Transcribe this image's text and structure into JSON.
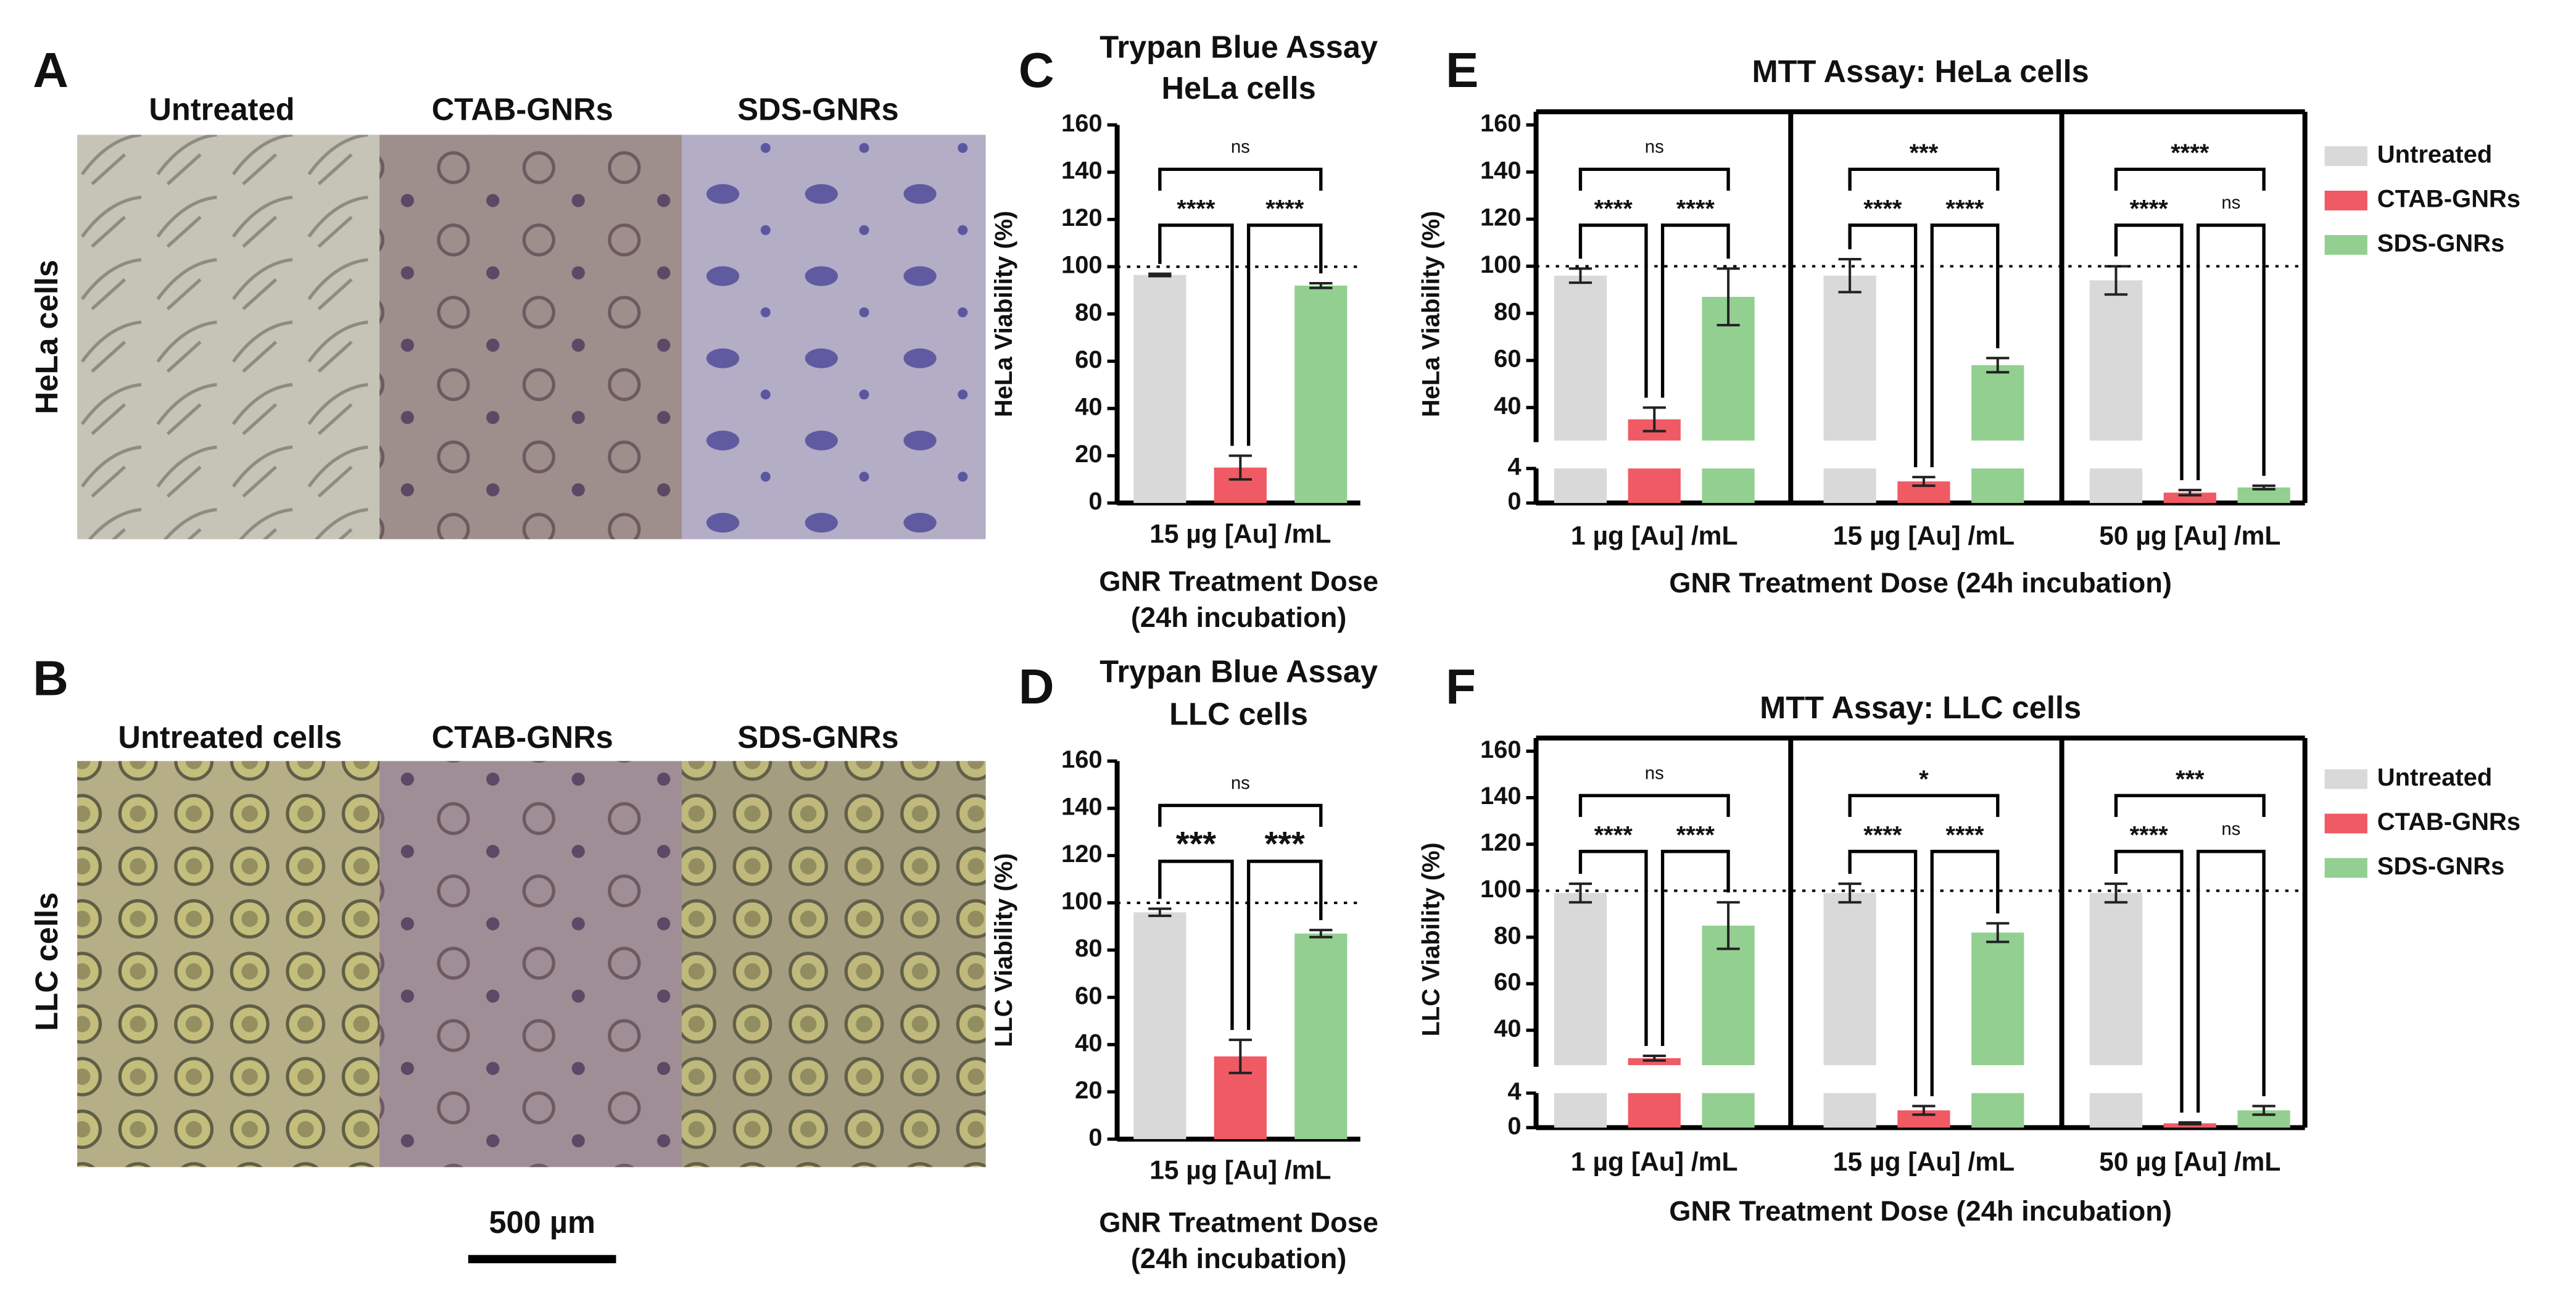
{
  "panels": {
    "a": {
      "letter": "A",
      "row_label": "HeLa cells",
      "columns": [
        "Untreated",
        "CTAB-GNRs",
        "SDS-GNRs"
      ]
    },
    "b": {
      "letter": "B",
      "row_label": "LLC cells",
      "columns": [
        "Untreated cells",
        "CTAB-GNRs",
        "SDS-GNRs"
      ]
    },
    "scale_bar": "500 µm"
  },
  "chart_data": [
    {
      "type": "bar",
      "letter": "C",
      "title": "Trypan Blue Assay",
      "subtitle": "HeLa cells",
      "ylabel": "HeLa Viability (%)",
      "xlabel": [
        "GNR Treatment Dose",
        "(24h incubation)"
      ],
      "categories": [
        "15 µg [Au] /mL"
      ],
      "series": [
        {
          "color": "#d9d9d9",
          "values": [
            96.5
          ],
          "errors": [
            0.5
          ]
        },
        {
          "color": "#ef5a64",
          "values": [
            15
          ],
          "errors": [
            5
          ]
        },
        {
          "color": "#93cf91",
          "values": [
            92
          ],
          "errors": [
            1
          ]
        }
      ],
      "ylim": [
        0,
        160
      ],
      "yticks": [
        0,
        20,
        40,
        60,
        80,
        100,
        120,
        140,
        160
      ],
      "reference_line": 100,
      "brackets": [
        [
          {
            "between": [
              0,
              2
            ],
            "label": "ns"
          },
          {
            "between": [
              0,
              1
            ],
            "label": "****"
          },
          {
            "between": [
              1,
              2
            ],
            "label": "****"
          }
        ]
      ]
    },
    {
      "type": "bar",
      "letter": "D",
      "title": "Trypan Blue Assay",
      "subtitle": "LLC cells",
      "ylabel": "LLC Viability (%)",
      "xlabel": [
        "GNR Treatment Dose",
        "(24h incubation)"
      ],
      "categories": [
        "15 µg [Au] /mL"
      ],
      "series": [
        {
          "color": "#d9d9d9",
          "values": [
            96
          ],
          "errors": [
            1.5
          ]
        },
        {
          "color": "#ef5a64",
          "values": [
            35
          ],
          "errors": [
            7
          ]
        },
        {
          "color": "#93cf91",
          "values": [
            87
          ],
          "errors": [
            1.5
          ]
        }
      ],
      "ylim": [
        0,
        160
      ],
      "yticks": [
        0,
        20,
        40,
        60,
        80,
        100,
        120,
        140,
        160
      ],
      "reference_line": 100,
      "brackets": [
        [
          {
            "between": [
              0,
              2
            ],
            "label": "ns"
          },
          {
            "between": [
              0,
              1
            ],
            "label": "***"
          },
          {
            "between": [
              1,
              2
            ],
            "label": "***"
          }
        ]
      ]
    },
    {
      "type": "bar",
      "letter": "E",
      "title": "MTT Assay: HeLa cells",
      "ylabel": "HeLa Viability (%)",
      "xlabel": [
        "GNR Treatment Dose (24h incubation)"
      ],
      "categories": [
        "1 µg [Au] /mL",
        "15 µg [Au] /mL",
        "50 µg [Au] /mL"
      ],
      "series": [
        {
          "name": "Untreated",
          "color": "#d9d9d9",
          "values": [
            96,
            96,
            94
          ],
          "errors": [
            3,
            7,
            6
          ]
        },
        {
          "name": "CTAB-GNRs",
          "color": "#ef5a64",
          "values": [
            35,
            2.5,
            1.2
          ],
          "errors": [
            5,
            0.5,
            0.3
          ]
        },
        {
          "name": "SDS-GNRs",
          "color": "#93cf91",
          "values": [
            87,
            58,
            1.8
          ],
          "errors": [
            12,
            3,
            0.2
          ]
        }
      ],
      "y_segments": [
        {
          "ylim": [
            0,
            4
          ],
          "yticks": [
            0,
            4
          ]
        },
        {
          "ylim": [
            26,
            160
          ],
          "yticks": [
            40,
            60,
            80,
            100,
            120,
            140,
            160
          ]
        }
      ],
      "reference_line": 100,
      "legend": "right",
      "brackets": [
        [
          {
            "between": [
              0,
              2
            ],
            "label": "ns"
          },
          {
            "between": [
              0,
              1
            ],
            "label": "****"
          },
          {
            "between": [
              1,
              2
            ],
            "label": "****"
          }
        ],
        [
          {
            "between": [
              0,
              2
            ],
            "label": "***"
          },
          {
            "between": [
              0,
              1
            ],
            "label": "****"
          },
          {
            "between": [
              1,
              2
            ],
            "label": "****"
          }
        ],
        [
          {
            "between": [
              0,
              2
            ],
            "label": "****"
          },
          {
            "between": [
              0,
              1
            ],
            "label": "****"
          },
          {
            "between": [
              1,
              2
            ],
            "label": "ns"
          }
        ]
      ]
    },
    {
      "type": "bar",
      "letter": "F",
      "title": "MTT Assay: LLC cells",
      "ylabel": "LLC Viability (%)",
      "xlabel": [
        "GNR Treatment Dose (24h incubation)"
      ],
      "categories": [
        "1 µg [Au] /mL",
        "15 µg [Au] /mL",
        "50 µg [Au] /mL"
      ],
      "series": [
        {
          "name": "Untreated",
          "color": "#d9d9d9",
          "values": [
            99,
            99,
            99
          ],
          "errors": [
            4,
            4,
            4
          ]
        },
        {
          "name": "CTAB-GNRs",
          "color": "#ef5a64",
          "values": [
            28,
            2,
            0.5
          ],
          "errors": [
            1,
            0.5,
            0.1
          ]
        },
        {
          "name": "SDS-GNRs",
          "color": "#93cf91",
          "values": [
            85,
            82,
            2
          ],
          "errors": [
            10,
            4,
            0.5
          ]
        }
      ],
      "y_segments": [
        {
          "ylim": [
            0,
            4
          ],
          "yticks": [
            0,
            4
          ]
        },
        {
          "ylim": [
            25,
            160
          ],
          "yticks": [
            40,
            60,
            80,
            100,
            120,
            140,
            160
          ]
        }
      ],
      "reference_line": 100,
      "legend": "right",
      "brackets": [
        [
          {
            "between": [
              0,
              2
            ],
            "label": "ns"
          },
          {
            "between": [
              0,
              1
            ],
            "label": "****"
          },
          {
            "between": [
              1,
              2
            ],
            "label": "****"
          }
        ],
        [
          {
            "between": [
              0,
              2
            ],
            "label": "*"
          },
          {
            "between": [
              0,
              1
            ],
            "label": "****"
          },
          {
            "between": [
              1,
              2
            ],
            "label": "****"
          }
        ],
        [
          {
            "between": [
              0,
              2
            ],
            "label": "***"
          },
          {
            "between": [
              0,
              1
            ],
            "label": "****"
          },
          {
            "between": [
              1,
              2
            ],
            "label": "ns"
          }
        ]
      ]
    }
  ]
}
